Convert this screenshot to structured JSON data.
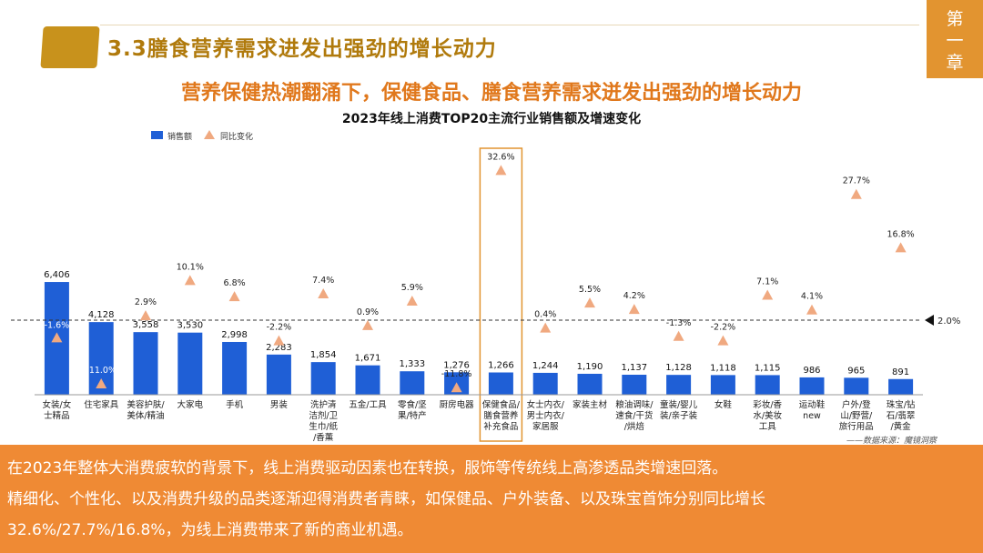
{
  "header": {
    "section_title": "3.3膳食营养需求进发出强劲的增长动力",
    "chapter": [
      "第",
      "一",
      "章"
    ]
  },
  "subtitle": "营养保健热潮翻涌下，保健食品、膳食营养需求迸发出强劲的增长动力",
  "chart_data": {
    "type": "bar",
    "title": "2023年线上消费TOP20主流行业销售额及增速变化",
    "categories": [
      [
        "女装/女",
        "士精品"
      ],
      [
        "住宅家具"
      ],
      [
        "美容护肤/",
        "美体/精油"
      ],
      [
        "大家电"
      ],
      [
        "手机"
      ],
      [
        "男装"
      ],
      [
        "洗护清",
        "洁剂/卫",
        "生巾/纸",
        "/香薰"
      ],
      [
        "五金/工具"
      ],
      [
        "零食/坚",
        "果/特产"
      ],
      [
        "厨房电器"
      ],
      [
        "保健食品/",
        "膳食营养",
        "补充食品"
      ],
      [
        "女士内衣/",
        "男士内衣/",
        "家居服"
      ],
      [
        "家装主材"
      ],
      [
        "粮油调味/",
        "速食/干货",
        "/烘焙"
      ],
      [
        "童装/婴儿",
        "装/亲子装"
      ],
      [
        "女鞋"
      ],
      [
        "彩妆/香",
        "水/美妆",
        "工具"
      ],
      [
        "运动鞋",
        "new"
      ],
      [
        "户外/登",
        "山/野营/",
        "旅行用品"
      ],
      [
        "珠宝/钻",
        "石/翡翠",
        "/黄金"
      ]
    ],
    "series": [
      {
        "name": "销售额",
        "type": "bar",
        "color": "#1f5fd6",
        "values": [
          6406,
          4128,
          3558,
          3530,
          2998,
          2283,
          1854,
          1671,
          1333,
          1276,
          1266,
          1244,
          1190,
          1137,
          1128,
          1118,
          1115,
          986,
          965,
          891
        ],
        "labels": [
          "6,406",
          "4,128",
          "3,558",
          "3,530",
          "2,998",
          "2,283",
          "1,854",
          "1,671",
          "1,333",
          "1,276",
          "1,266",
          "1,244",
          "1,190",
          "1,137",
          "1,128",
          "1,118",
          "1,115",
          "986",
          "965",
          "891"
        ]
      },
      {
        "name": "同比变化",
        "type": "scatter",
        "marker": "triangle",
        "color": "#f0a980",
        "values": [
          -1.6,
          -11.0,
          2.9,
          10.1,
          6.8,
          -2.2,
          7.4,
          0.9,
          5.9,
          -11.8,
          32.6,
          0.4,
          5.5,
          4.2,
          -1.3,
          -2.2,
          7.1,
          4.1,
          27.7,
          16.8
        ],
        "labels": [
          "-1.6%",
          "-11.0%",
          "2.9%",
          "10.1%",
          "6.8%",
          "-2.2%",
          "7.4%",
          "0.9%",
          "5.9%",
          "-11.8%",
          "32.6%",
          "0.4%",
          "5.5%",
          "4.2%",
          "-1.3%",
          "-2.2%",
          "7.1%",
          "4.1%",
          "27.7%",
          "16.8%"
        ]
      }
    ],
    "reference_line": {
      "value": 2.0,
      "label": "2.0%"
    },
    "highlight_index": 10,
    "highlight_color": "#e29430",
    "legend": "top-left",
    "grid": false,
    "source_note": "——数据来源：魔镜洞察"
  },
  "bottom_text": [
    "在2023年整体大消费疲软的背景下，线上消费驱动因素也在转换，服饰等传统线上高渗透品类增速回落。",
    "精细化、个性化、以及消费升级的品类逐渐迎得消费者青睐，如保健品、户外装备、以及珠宝首饰分别同比增长",
    "32.6%/27.7%/16.8%，为线上消费带来了新的商业机遇。"
  ]
}
